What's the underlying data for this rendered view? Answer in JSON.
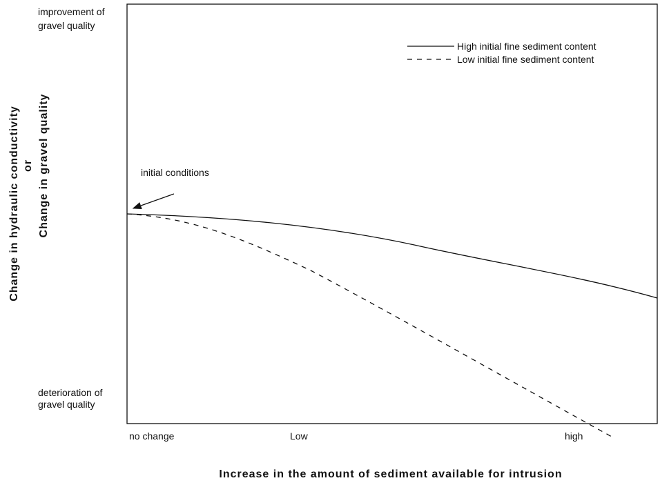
{
  "diagram": {
    "y_axis": {
      "top_label": [
        "improvement of",
        "gravel quality"
      ],
      "bottom_label": [
        "deterioration of",
        "gravel quality"
      ],
      "title": [
        "Change in hydraulic conductivity",
        "or",
        "Change in gravel quality"
      ]
    },
    "x_axis": {
      "labels": [
        "no change",
        "Low",
        "high"
      ],
      "title": "Increase in the amount of sediment available for intrusion"
    },
    "annotation": "initial conditions",
    "legend": [
      "High initial fine sediment content",
      "Low initial fine sediment content"
    ]
  }
}
